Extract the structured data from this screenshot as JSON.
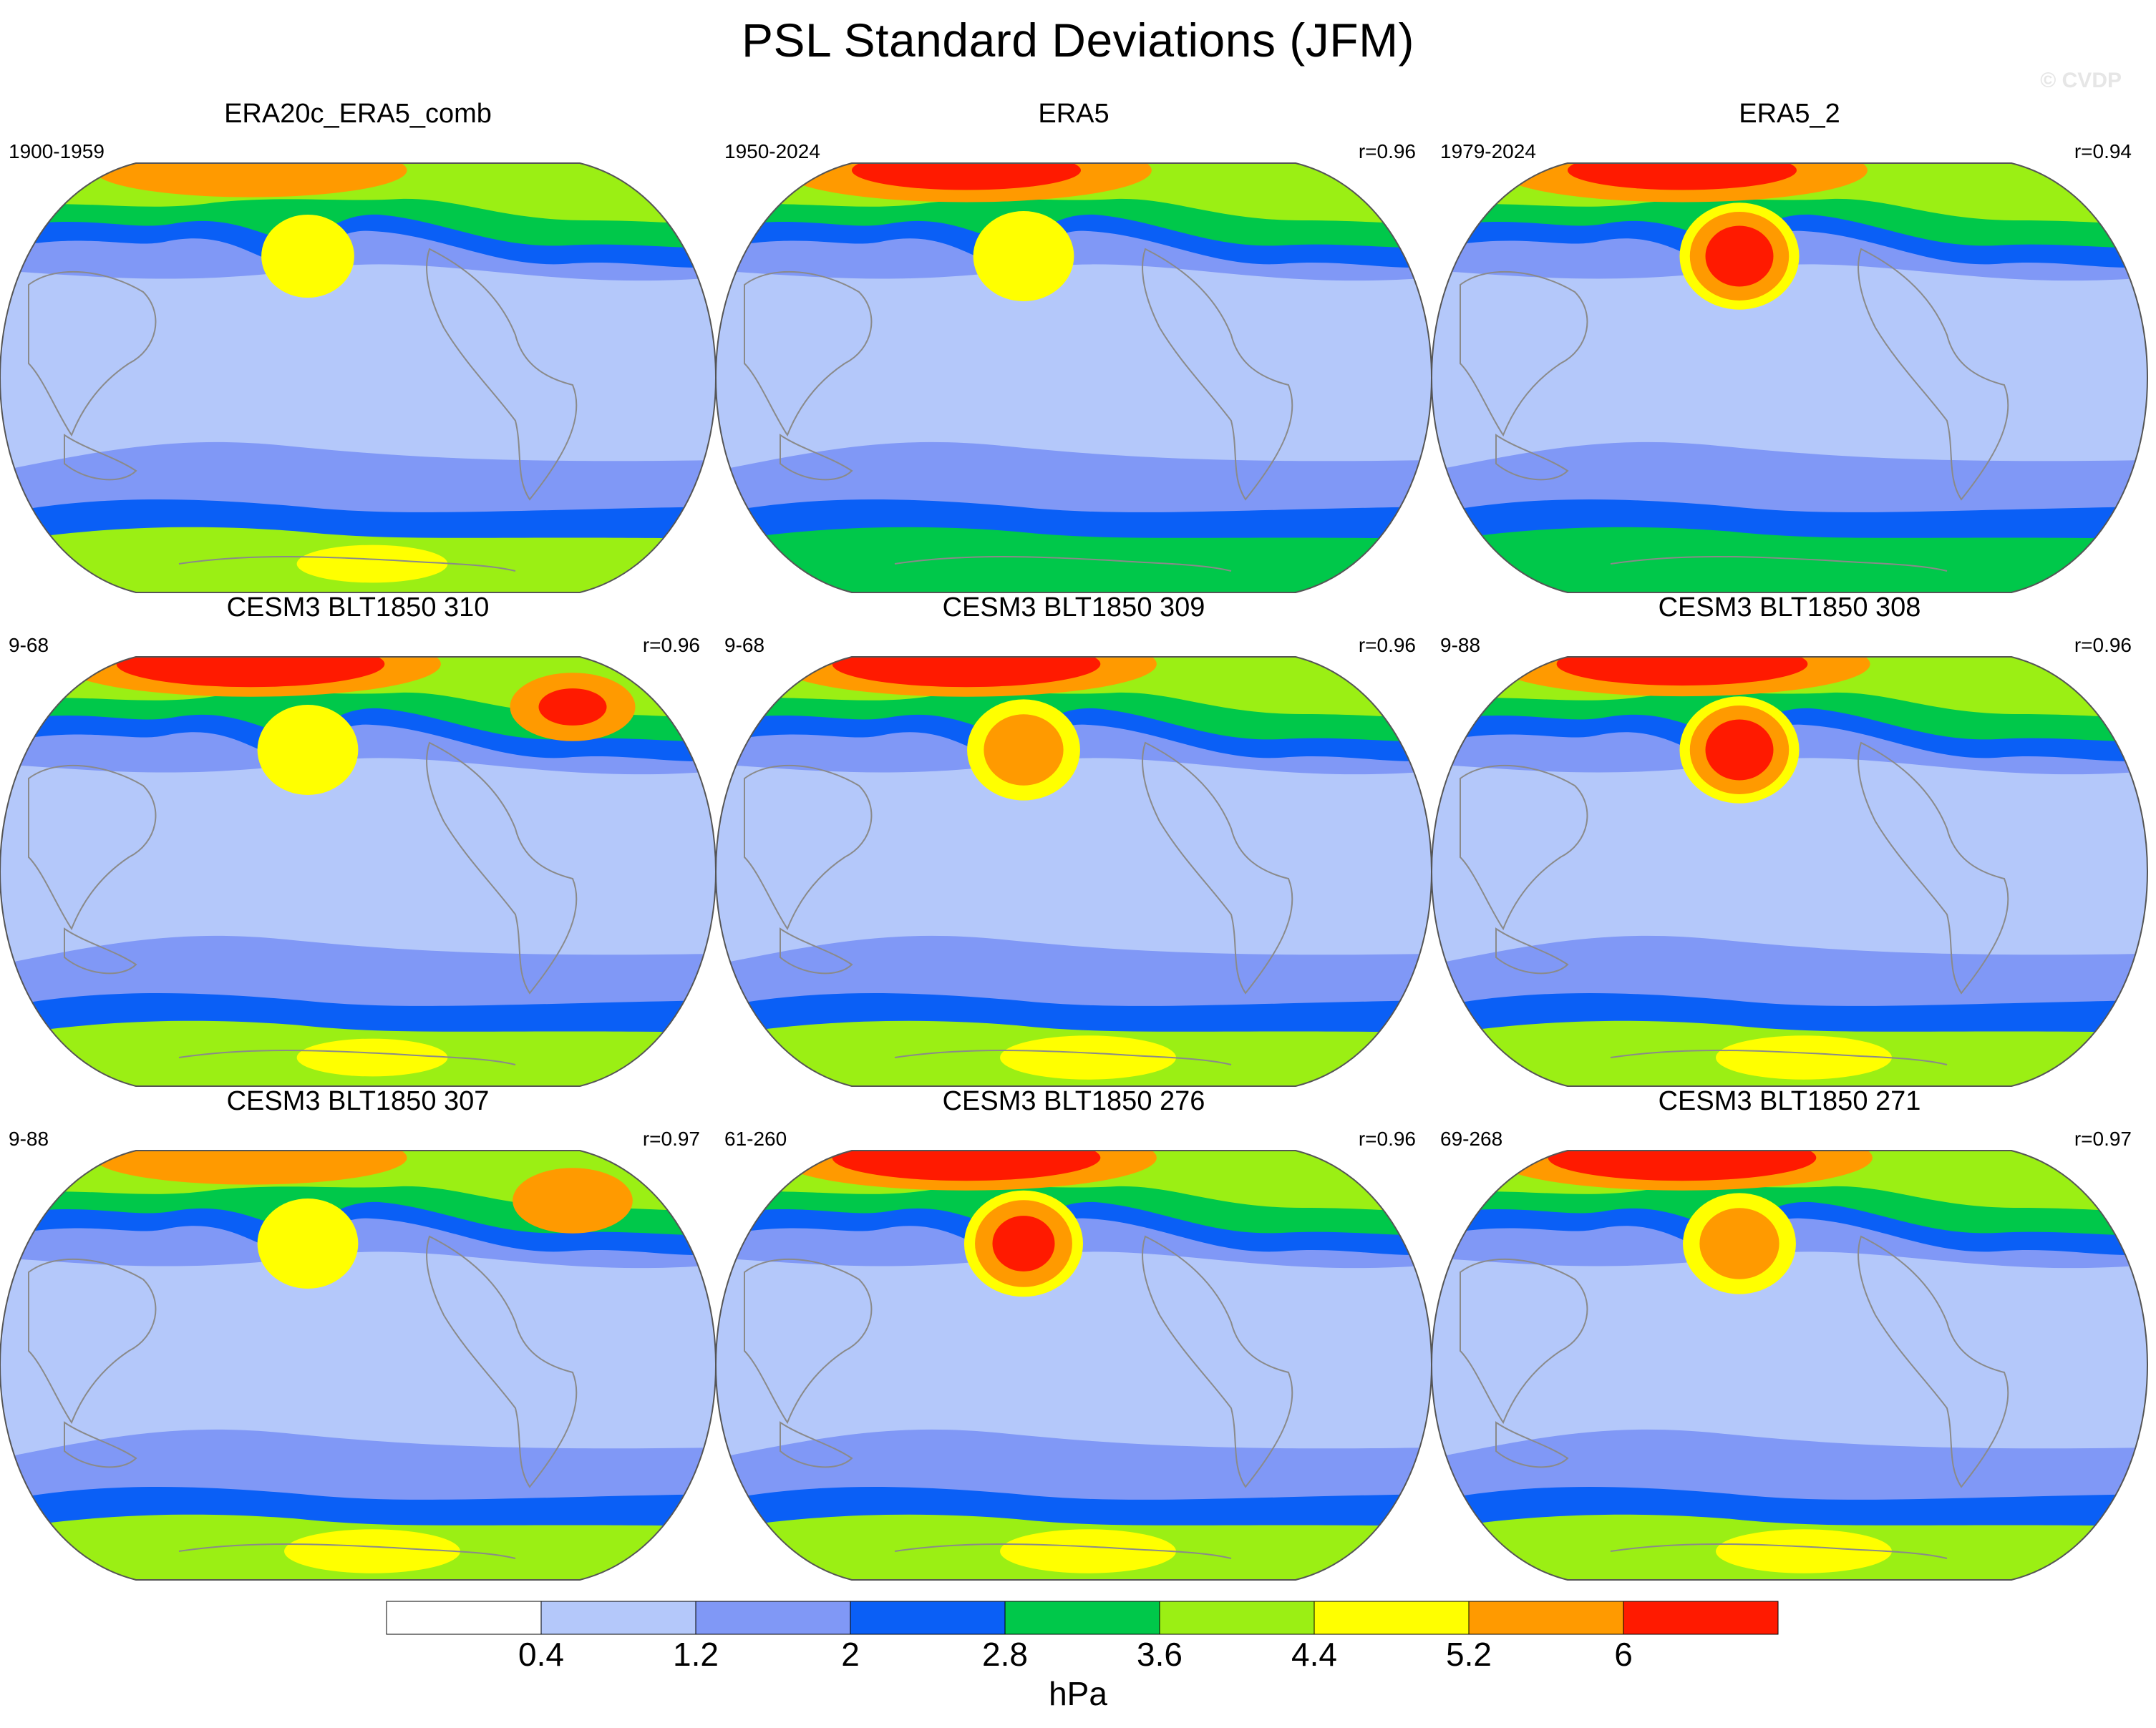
{
  "header": {
    "title": "PSL Standard Deviations (JFM)",
    "credit": "© CVDP"
  },
  "colors": {
    "levels": [
      "#ffffff",
      "#b4c8fa",
      "#8098f6",
      "#0a5ff6",
      "#00c84a",
      "#9bef14",
      "#ffff00",
      "#ff9a00",
      "#ff1a00"
    ],
    "coast": "#8a8a8a",
    "outline": "#555555"
  },
  "chart_data": {
    "type": "map-contour",
    "variable": "PSL",
    "title": "PSL Standard Deviations (JFM)",
    "units": "hPa",
    "levels": [
      0.4,
      1.2,
      2,
      2.8,
      3.6,
      4.4,
      5.2,
      6
    ],
    "level_labels": [
      "0.4",
      "1.2",
      "2",
      "2.8",
      "3.6",
      "4.4",
      "5.2",
      "6"
    ],
    "projection": "Robinson",
    "panels": [
      {
        "name": "ERA20c_ERA5_comb",
        "range": "1900-1959",
        "corr": "",
        "npac": 4.8,
        "natl": 4.6,
        "arctic": 5.6,
        "so": 3.6,
        "ant": 4.6
      },
      {
        "name": "ERA5",
        "range": "1950-2024",
        "corr": "r=0.96",
        "npac": 5.0,
        "natl": 4.9,
        "arctic": 6.2,
        "so": 3.2,
        "ant": 3.4
      },
      {
        "name": "ERA5_2",
        "range": "1979-2024",
        "corr": "r=0.94",
        "npac": 6.3,
        "natl": 4.8,
        "arctic": 6.2,
        "so": 3.0,
        "ant": 3.8
      },
      {
        "name": "CESM3 BLT1850 310",
        "range": "9-68",
        "corr": "r=0.96",
        "npac": 5.0,
        "natl": 6.1,
        "arctic": 6.4,
        "so": 3.7,
        "ant": 4.6
      },
      {
        "name": "CESM3 BLT1850 309",
        "range": "9-68",
        "corr": "r=0.96",
        "npac": 5.6,
        "natl": 5.0,
        "arctic": 6.4,
        "so": 3.7,
        "ant": 4.8
      },
      {
        "name": "CESM3 BLT1850 308",
        "range": "9-88",
        "corr": "r=0.96",
        "npac": 6.3,
        "natl": 5.0,
        "arctic": 6.3,
        "so": 3.7,
        "ant": 4.8
      },
      {
        "name": "CESM3 BLT1850 307",
        "range": "9-88",
        "corr": "r=0.97",
        "npac": 5.0,
        "natl": 5.9,
        "arctic": 5.6,
        "so": 3.7,
        "ant": 4.8
      },
      {
        "name": "CESM3 BLT1850 276",
        "range": "61-260",
        "corr": "r=0.96",
        "npac": 6.2,
        "natl": 5.0,
        "arctic": 6.4,
        "so": 3.7,
        "ant": 4.8
      },
      {
        "name": "CESM3 BLT1850 271",
        "range": "69-268",
        "corr": "r=0.97",
        "npac": 5.6,
        "natl": 5.0,
        "arctic": 6.4,
        "so": 3.7,
        "ant": 4.8
      }
    ]
  }
}
